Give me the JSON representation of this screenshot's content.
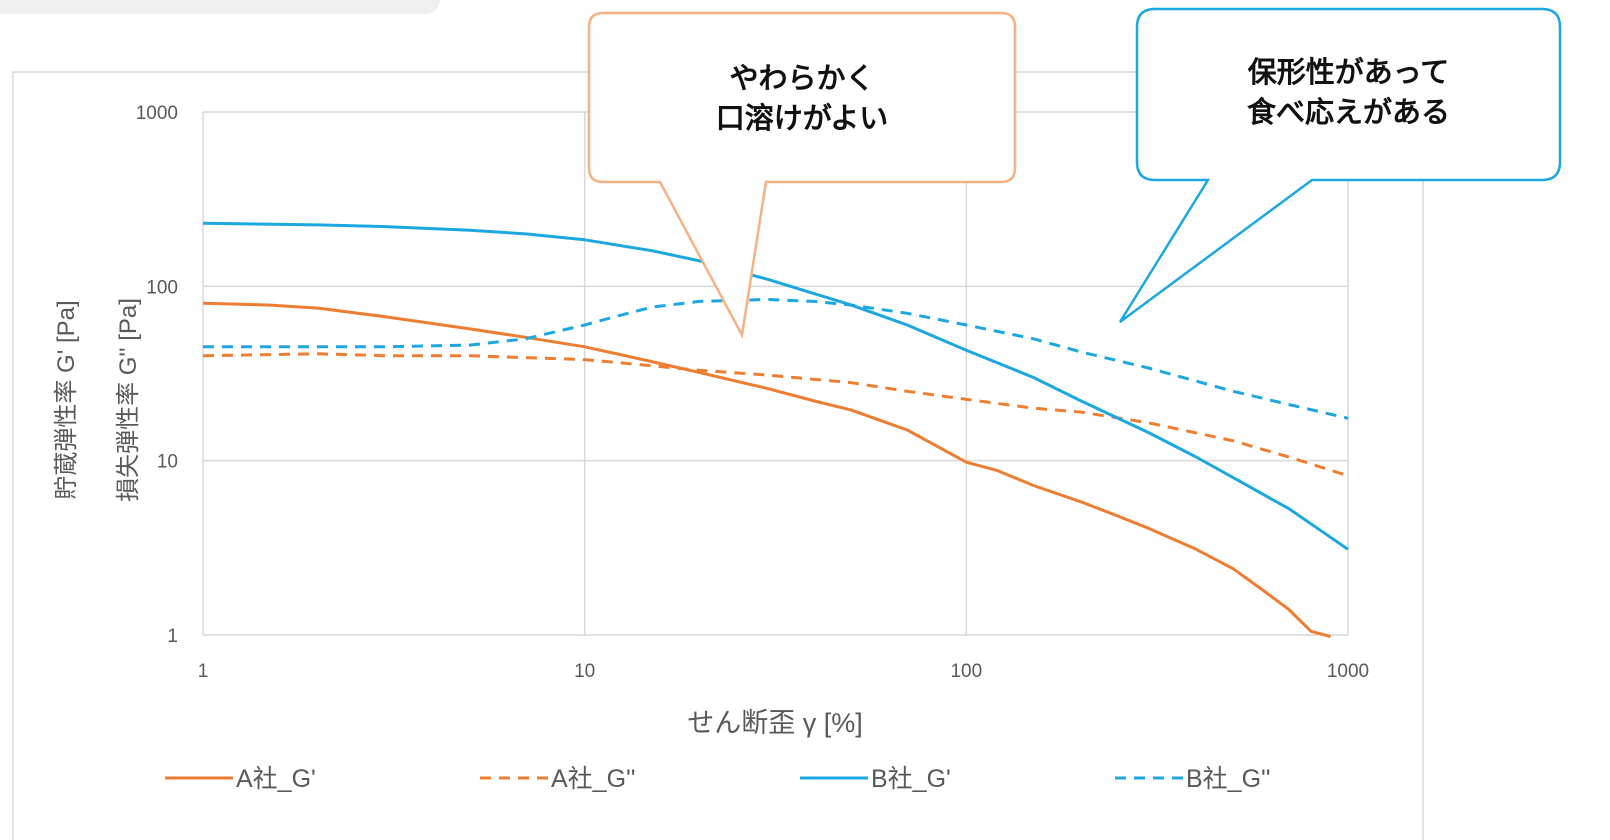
{
  "chart_data": {
    "type": "line",
    "xscale": "log",
    "yscale": "log",
    "xlim": [
      1,
      1000
    ],
    "ylim": [
      1,
      1000
    ],
    "xticks": [
      "1",
      "10",
      "100",
      "1000"
    ],
    "yticks": [
      "1",
      "10",
      "100",
      "1000"
    ],
    "xlabel": "せん断歪 γ [%]",
    "ylabel_1": "貯蔵弾性率 G' [Pa]",
    "ylabel_2": "損失弾性率 G'' [Pa]",
    "grid": true,
    "legend_position": "bottom",
    "series": [
      {
        "name": "A社_G'",
        "color": "#ED7D31",
        "dash": false,
        "x": [
          1,
          1.5,
          2,
          3,
          5,
          7,
          10,
          15,
          20,
          30,
          40,
          50,
          70,
          100,
          120,
          150,
          200,
          250,
          300,
          400,
          500,
          600,
          700,
          800,
          900
        ],
        "y": [
          80,
          78,
          75,
          67,
          57,
          51,
          45,
          37,
          32,
          26,
          22,
          19.5,
          15,
          9.8,
          8.8,
          7.2,
          5.8,
          4.8,
          4.1,
          3.1,
          2.4,
          1.8,
          1.4,
          1.05,
          0.98
        ]
      },
      {
        "name": "A社_G''",
        "color": "#ED7D31",
        "dash": true,
        "x": [
          1,
          2,
          3,
          5,
          7,
          10,
          15,
          20,
          30,
          50,
          70,
          100,
          150,
          200,
          300,
          500,
          700,
          1000
        ],
        "y": [
          40,
          41,
          40,
          40,
          39,
          38,
          35,
          33,
          31,
          28,
          25,
          22.5,
          20,
          19,
          16.5,
          13,
          10.5,
          8.2
        ]
      },
      {
        "name": "B社_G'",
        "color": "#1CA7E0",
        "dash": false,
        "x": [
          1,
          2,
          3,
          5,
          7,
          10,
          15,
          20,
          30,
          50,
          70,
          100,
          150,
          200,
          300,
          400,
          500,
          700,
          1000
        ],
        "y": [
          230,
          225,
          220,
          210,
          200,
          185,
          160,
          140,
          110,
          78,
          60,
          43,
          30,
          22,
          14.5,
          10.5,
          8,
          5.3,
          3.1
        ]
      },
      {
        "name": "B社_G''",
        "color": "#1CA7E0",
        "dash": true,
        "x": [
          1,
          2,
          3,
          5,
          7,
          10,
          12,
          15,
          20,
          30,
          40,
          50,
          70,
          100,
          150,
          200,
          300,
          500,
          700,
          1000
        ],
        "y": [
          45,
          45,
          45,
          46,
          50,
          60,
          67,
          76,
          82,
          84,
          82,
          78,
          70,
          60,
          50,
          42,
          34,
          25,
          21,
          17.5
        ]
      }
    ]
  },
  "annotations": {
    "callout_a": {
      "line1": "やわらかく",
      "line2": "口溶けがよい",
      "color": "#F4B183"
    },
    "callout_b": {
      "line1": "保形性があって",
      "line2": "食べ応えがある",
      "color": "#1CA7E0"
    }
  }
}
